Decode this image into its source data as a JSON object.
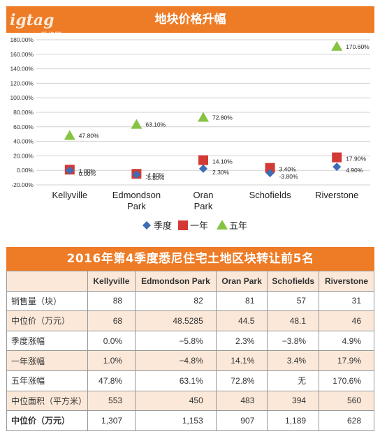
{
  "logo": {
    "name": "igtag",
    "sub": "爱格网"
  },
  "chart_title": "地块价格升幅",
  "chart_data": {
    "type": "scatter",
    "title": "地块价格升幅",
    "categories": [
      "Kellyville",
      "Edmondson Park",
      "Oran Park",
      "Schofields",
      "Riverstone"
    ],
    "category_lines": [
      [
        "Kellyville"
      ],
      [
        "Edmondson",
        "Park"
      ],
      [
        "Oran",
        "Park"
      ],
      [
        "Schofields"
      ],
      [
        "Riverstone"
      ]
    ],
    "ylim": [
      -20,
      180
    ],
    "yticks": [
      -20,
      0,
      20,
      40,
      60,
      80,
      100,
      120,
      140,
      160,
      180
    ],
    "ytick_labels": [
      "-20.00%",
      "0.00%",
      "20.00%",
      "40.00%",
      "60.00%",
      "80.00%",
      "100.00%",
      "120.00%",
      "140.00%",
      "160.00%",
      "180.00%"
    ],
    "grid": true,
    "legend_position": "bottom",
    "series": [
      {
        "name": "季度",
        "marker": "diamond",
        "color": "#3d6db5",
        "values": [
          0.0,
          -5.8,
          2.3,
          -3.8,
          4.9
        ],
        "labels": [
          "0.00%",
          "-5.80%",
          "2.30%",
          "-3.80%",
          "4.90%"
        ]
      },
      {
        "name": "一年",
        "marker": "square",
        "color": "#d33a35",
        "values": [
          1.0,
          -4.8,
          14.1,
          3.4,
          17.9
        ],
        "labels": [
          "1.00%",
          "-4.80%",
          "14.10%",
          "3.40%",
          "17.90%"
        ]
      },
      {
        "name": "五年",
        "marker": "triangle",
        "color": "#86c341",
        "values": [
          47.8,
          63.1,
          72.8,
          null,
          170.6
        ],
        "labels": [
          "47.80%",
          "63.10%",
          "72.80%",
          "",
          "170.60%"
        ]
      }
    ]
  },
  "table": {
    "title": "2016年第4季度悉尼住宅土地区块转让前5名",
    "headers": [
      "",
      "Kellyville",
      "Edmondson Park",
      "Oran Park",
      "Schofields",
      "Riverstone"
    ],
    "rows": [
      [
        "销售量（块）",
        "88",
        "82",
        "81",
        "57",
        "31"
      ],
      [
        "中位价（万元）",
        "68",
        "48.5285",
        "44.5",
        "48.1",
        "46"
      ],
      [
        "季度涨幅",
        "0.0%",
        "−5.8%",
        "2.3%",
        "−3.8%",
        "4.9%"
      ],
      [
        "一年涨幅",
        "1.0%",
        "−4.8%",
        "14.1%",
        "3.4%",
        "17.9%"
      ],
      [
        "五年涨幅",
        "47.8%",
        "63.1%",
        "72.8%",
        "无",
        "170.6%"
      ],
      [
        "中位面积（平方米）",
        "553",
        "450",
        "483",
        "394",
        "560"
      ],
      [
        "中位价（万元）",
        "1,307",
        "1,153",
        "907",
        "1,189",
        "628"
      ]
    ]
  }
}
